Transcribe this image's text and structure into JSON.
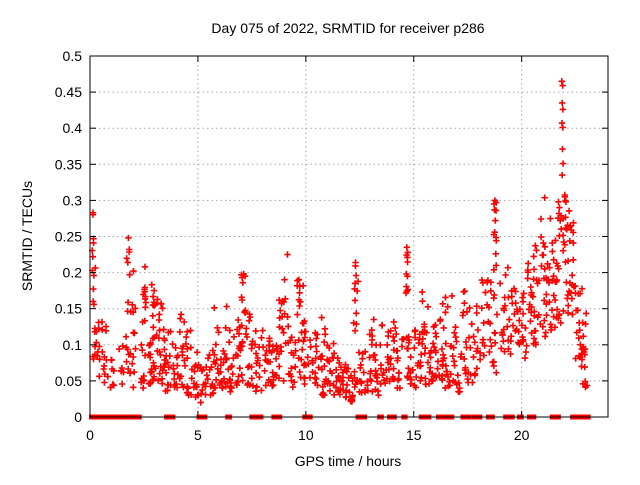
{
  "chart_data": {
    "type": "scatter",
    "title": "Day 075 of 2022, SRMTID for receiver p286",
    "xlabel": "GPS time / hours",
    "ylabel": "SRMTID / TECUs",
    "xlim": [
      0,
      24
    ],
    "ylim": [
      0,
      0.5
    ],
    "xticks": [
      0,
      5,
      10,
      15,
      20
    ],
    "xtick_labels": [
      "0",
      "5",
      "10",
      "15",
      "20"
    ],
    "yticks": [
      0,
      0.05,
      0.1,
      0.15,
      0.2,
      0.25,
      0.3,
      0.35,
      0.4,
      0.45,
      0.5
    ],
    "ytick_labels": [
      "0",
      "0.05",
      "0.1",
      "0.15",
      "0.2",
      "0.25",
      "0.3",
      "0.35",
      "0.4",
      "0.45",
      "0.5"
    ],
    "grid": true,
    "legend": "none",
    "marker": "plus",
    "marker_color": "#ff0000",
    "grid_color": "#a6a6a6",
    "axis_color": "#000000",
    "notable_points": [
      [
        0.14,
        0.283
      ],
      [
        0.16,
        0.247
      ],
      [
        0.13,
        0.222
      ],
      [
        0.18,
        0.196
      ],
      [
        0.15,
        0.16
      ],
      [
        1.78,
        0.248
      ],
      [
        1.82,
        0.232
      ],
      [
        1.75,
        0.214
      ],
      [
        2.55,
        0.208
      ],
      [
        7.12,
        0.198
      ],
      [
        7.08,
        0.186
      ],
      [
        9.68,
        0.19
      ],
      [
        9.72,
        0.181
      ],
      [
        12.3,
        0.214
      ],
      [
        12.33,
        0.196
      ],
      [
        12.28,
        0.185
      ],
      [
        14.68,
        0.235
      ],
      [
        14.72,
        0.228
      ],
      [
        14.7,
        0.221
      ],
      [
        14.66,
        0.198
      ],
      [
        14.71,
        0.195
      ],
      [
        18.76,
        0.3
      ],
      [
        18.74,
        0.287
      ],
      [
        18.78,
        0.272
      ],
      [
        18.75,
        0.256
      ],
      [
        18.8,
        0.226
      ],
      [
        18.82,
        0.21
      ],
      [
        19.0,
        0.185
      ],
      [
        21.7,
        0.298
      ],
      [
        21.75,
        0.29
      ],
      [
        22.0,
        0.305
      ],
      [
        22.05,
        0.298
      ],
      [
        21.86,
        0.465
      ],
      [
        21.9,
        0.459
      ],
      [
        21.88,
        0.435
      ],
      [
        21.91,
        0.426
      ],
      [
        21.87,
        0.407
      ],
      [
        21.9,
        0.401
      ],
      [
        21.89,
        0.371
      ],
      [
        21.92,
        0.351
      ],
      [
        21.88,
        0.335
      ]
    ],
    "clusters": [
      [
        0.1,
        0.25,
        0.05,
        0.285,
        13,
        1.2
      ],
      [
        0.28,
        0.45,
        0.05,
        0.165,
        9,
        1.3
      ],
      [
        0.55,
        0.85,
        0.04,
        0.135,
        12,
        1.2
      ],
      [
        0.95,
        1.15,
        0.04,
        0.09,
        8,
        1.2
      ],
      [
        1.35,
        1.55,
        0.045,
        0.1,
        7,
        1.2
      ],
      [
        1.65,
        1.9,
        0.05,
        0.25,
        15,
        1.1
      ],
      [
        1.95,
        2.15,
        0.04,
        0.22,
        12,
        1.3
      ],
      [
        2.35,
        2.6,
        0.04,
        0.21,
        14,
        1.5
      ],
      [
        2.45,
        2.65,
        0.155,
        0.195,
        6,
        1.0
      ],
      [
        2.7,
        2.9,
        0.04,
        0.13,
        12,
        1.4
      ],
      [
        2.85,
        3.15,
        0.05,
        0.19,
        22,
        1.5
      ],
      [
        3.15,
        3.45,
        0.04,
        0.16,
        20,
        1.5
      ],
      [
        3.45,
        3.75,
        0.035,
        0.12,
        16,
        1.4
      ],
      [
        3.8,
        4.1,
        0.04,
        0.105,
        14,
        1.3
      ],
      [
        4.15,
        4.45,
        0.04,
        0.15,
        16,
        1.4
      ],
      [
        4.45,
        4.75,
        0.03,
        0.12,
        14,
        1.5
      ],
      [
        4.8,
        5.1,
        0.025,
        0.09,
        14,
        1.3
      ],
      [
        5.1,
        5.45,
        0.02,
        0.08,
        12,
        1.3
      ],
      [
        5.45,
        5.75,
        0.03,
        0.1,
        12,
        1.4
      ],
      [
        5.75,
        6.05,
        0.04,
        0.155,
        15,
        1.5
      ],
      [
        6.05,
        6.35,
        0.04,
        0.165,
        16,
        1.5
      ],
      [
        6.35,
        6.7,
        0.035,
        0.13,
        16,
        1.5
      ],
      [
        6.7,
        7.0,
        0.04,
        0.155,
        15,
        1.4
      ],
      [
        7.0,
        7.25,
        0.05,
        0.2,
        16,
        1.4
      ],
      [
        7.25,
        7.6,
        0.04,
        0.145,
        16,
        1.5
      ],
      [
        7.6,
        7.95,
        0.035,
        0.12,
        15,
        1.5
      ],
      [
        8.0,
        8.35,
        0.04,
        0.12,
        17,
        1.5
      ],
      [
        8.35,
        8.7,
        0.04,
        0.1,
        15,
        1.4
      ],
      [
        8.75,
        9.05,
        0.05,
        0.17,
        16,
        1.4
      ],
      [
        9.0,
        9.2,
        0.1,
        0.235,
        8,
        1.0
      ],
      [
        9.2,
        9.55,
        0.04,
        0.12,
        15,
        1.5
      ],
      [
        9.55,
        9.9,
        0.045,
        0.19,
        17,
        1.6
      ],
      [
        9.9,
        10.25,
        0.04,
        0.145,
        16,
        1.5
      ],
      [
        10.25,
        10.55,
        0.035,
        0.12,
        14,
        1.5
      ],
      [
        10.55,
        10.9,
        0.03,
        0.155,
        17,
        1.7
      ],
      [
        10.9,
        11.3,
        0.035,
        0.115,
        16,
        1.5
      ],
      [
        11.3,
        11.65,
        0.03,
        0.09,
        15,
        1.4
      ],
      [
        11.65,
        12.0,
        0.025,
        0.075,
        16,
        1.3
      ],
      [
        12.0,
        12.2,
        0.02,
        0.06,
        10,
        1.2
      ],
      [
        12.2,
        12.45,
        0.04,
        0.215,
        14,
        1.8
      ],
      [
        12.45,
        12.8,
        0.03,
        0.095,
        15,
        1.4
      ],
      [
        12.8,
        13.15,
        0.035,
        0.145,
        16,
        1.6
      ],
      [
        13.15,
        13.5,
        0.03,
        0.105,
        15,
        1.4
      ],
      [
        13.5,
        13.85,
        0.04,
        0.13,
        15,
        1.5
      ],
      [
        13.85,
        14.2,
        0.045,
        0.135,
        15,
        1.4
      ],
      [
        14.2,
        14.55,
        0.04,
        0.12,
        13,
        1.4
      ],
      [
        14.6,
        14.8,
        0.05,
        0.235,
        16,
        1.5
      ],
      [
        14.8,
        15.1,
        0.04,
        0.135,
        13,
        1.4
      ],
      [
        15.1,
        15.45,
        0.05,
        0.19,
        17,
        1.5
      ],
      [
        15.45,
        15.8,
        0.045,
        0.155,
        17,
        1.5
      ],
      [
        15.8,
        16.1,
        0.05,
        0.14,
        15,
        1.4
      ],
      [
        16.1,
        16.45,
        0.05,
        0.19,
        17,
        1.5
      ],
      [
        16.45,
        16.8,
        0.04,
        0.17,
        17,
        1.5
      ],
      [
        16.8,
        17.15,
        0.03,
        0.15,
        17,
        1.5
      ],
      [
        17.15,
        17.5,
        0.05,
        0.185,
        15,
        1.5
      ],
      [
        17.5,
        17.85,
        0.045,
        0.155,
        13,
        1.4
      ],
      [
        17.9,
        18.25,
        0.06,
        0.19,
        15,
        1.4
      ],
      [
        18.25,
        18.6,
        0.09,
        0.195,
        13,
        1.2
      ],
      [
        18.65,
        18.88,
        0.045,
        0.145,
        8,
        1.1
      ],
      [
        18.7,
        18.85,
        0.16,
        0.3,
        9,
        1.0
      ],
      [
        19.0,
        19.4,
        0.09,
        0.21,
        17,
        1.3
      ],
      [
        19.4,
        19.8,
        0.08,
        0.185,
        15,
        1.3
      ],
      [
        19.8,
        20.15,
        0.1,
        0.19,
        15,
        1.2
      ],
      [
        20.15,
        20.5,
        0.08,
        0.22,
        17,
        1.3
      ],
      [
        20.5,
        20.85,
        0.1,
        0.26,
        19,
        1.4
      ],
      [
        20.85,
        21.2,
        0.11,
        0.31,
        21,
        1.4
      ],
      [
        21.2,
        21.55,
        0.12,
        0.3,
        19,
        1.3
      ],
      [
        21.55,
        21.85,
        0.13,
        0.3,
        19,
        1.3
      ],
      [
        21.9,
        22.2,
        0.14,
        0.31,
        21,
        1.2
      ],
      [
        22.2,
        22.5,
        0.12,
        0.28,
        17,
        1.3
      ],
      [
        22.5,
        22.8,
        0.065,
        0.21,
        17,
        1.2
      ],
      [
        22.8,
        23.05,
        0.04,
        0.155,
        15,
        1.1
      ]
    ],
    "zero_marker_runs": [
      [
        0.07,
        0.13
      ],
      [
        0.18,
        0.3
      ],
      [
        0.38,
        0.44
      ],
      [
        0.55,
        0.72
      ],
      [
        0.8,
        1.35
      ],
      [
        1.42,
        1.72
      ],
      [
        1.8,
        2.05
      ],
      [
        2.12,
        2.28
      ],
      [
        3.55,
        3.6
      ],
      [
        3.66,
        3.71
      ],
      [
        3.78,
        3.84
      ],
      [
        5.05,
        5.32
      ],
      [
        6.38,
        6.46
      ],
      [
        7.5,
        7.66
      ],
      [
        7.8,
        7.92
      ],
      [
        8.52,
        8.57
      ],
      [
        8.63,
        8.68
      ],
      [
        8.74,
        8.79
      ],
      [
        9.95,
        10.2
      ],
      [
        12.42,
        12.72
      ],
      [
        13.42,
        13.5
      ],
      [
        13.88,
        14.1
      ],
      [
        14.54,
        14.6
      ],
      [
        15.35,
        15.7
      ],
      [
        16.15,
        16.33
      ],
      [
        16.56,
        16.76
      ],
      [
        17.28,
        17.56
      ],
      [
        17.8,
        18.06
      ],
      [
        18.46,
        18.64
      ],
      [
        19.26,
        19.56
      ],
      [
        19.9,
        19.98
      ],
      [
        20.36,
        20.56
      ],
      [
        21.42,
        21.7
      ],
      [
        22.36,
        22.52
      ],
      [
        22.62,
        22.82
      ],
      [
        23.02,
        23.08
      ]
    ]
  }
}
